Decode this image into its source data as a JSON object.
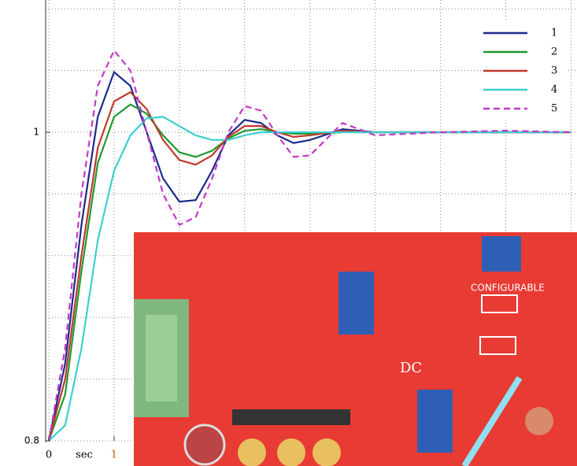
{
  "chart_data": {
    "type": "line",
    "x_label": "sec",
    "x": [
      0,
      0.25,
      0.5,
      0.75,
      1,
      1.25,
      1.5,
      1.75,
      2,
      2.25,
      2.5,
      2.75,
      3,
      3.25,
      3.5,
      3.75,
      4,
      4.5,
      5,
      6,
      7,
      8
    ],
    "series": [
      {
        "name": "1",
        "color": "#1c2a8c",
        "dash": false,
        "values": [
          0.8,
          0.85,
          0.94,
          1.01,
          1.039,
          1.03,
          1.0,
          0.97,
          0.955,
          0.956,
          0.975,
          0.998,
          1.008,
          1.006,
          0.998,
          0.993,
          0.995,
          1.002,
          1.0,
          1.0,
          1.0,
          1.0
        ]
      },
      {
        "name": "2",
        "color": "#1f9a30",
        "dash": false,
        "values": [
          0.8,
          0.83,
          0.91,
          0.98,
          1.01,
          1.018,
          1.012,
          0.998,
          0.987,
          0.984,
          0.988,
          0.996,
          1.001,
          1.002,
          1.0,
          0.999,
          0.999,
          1.0,
          1.0,
          1.0,
          1.0,
          1.0
        ]
      },
      {
        "name": "3",
        "color": "#c0392b",
        "dash": false,
        "values": [
          0.8,
          0.84,
          0.92,
          0.99,
          1.02,
          1.026,
          1.015,
          0.995,
          0.982,
          0.979,
          0.985,
          0.997,
          1.004,
          1.004,
          1.0,
          0.997,
          0.998,
          1.001,
          1.0,
          1.0,
          1.0,
          1.0
        ]
      },
      {
        "name": "4",
        "color": "#3ccfd0",
        "dash": false,
        "values": [
          0.8,
          0.81,
          0.86,
          0.93,
          0.975,
          0.998,
          1.009,
          1.01,
          1.004,
          0.998,
          0.995,
          0.995,
          0.998,
          1.0,
          1.0,
          1.0,
          1.0,
          1.0,
          1.0,
          1.0,
          1.0,
          1.0
        ]
      },
      {
        "name": "5",
        "color": "#c03ac8",
        "dash": true,
        "values": [
          0.8,
          0.86,
          0.96,
          1.03,
          1.053,
          1.04,
          1.0,
          0.96,
          0.94,
          0.945,
          0.97,
          1.0,
          1.017,
          1.014,
          0.998,
          0.984,
          0.985,
          1.006,
          0.998,
          1.0,
          1.001,
          1.0
        ]
      }
    ],
    "xlim": [
      0,
      8.09
    ],
    "ylim": [
      0.8,
      1.085
    ],
    "xticks": [
      0,
      1
    ],
    "yticks": [
      0.8,
      1
    ],
    "grid_x": [
      0,
      1,
      2,
      3,
      4,
      5,
      6,
      7,
      8
    ],
    "grid_y": [
      0.8,
      0.84,
      0.88,
      0.92,
      0.96,
      1,
      1.04,
      1.08
    ],
    "legend": "upper right"
  },
  "photo": {
    "labels": [
      "CONFIGURABLE",
      "DC"
    ]
  }
}
